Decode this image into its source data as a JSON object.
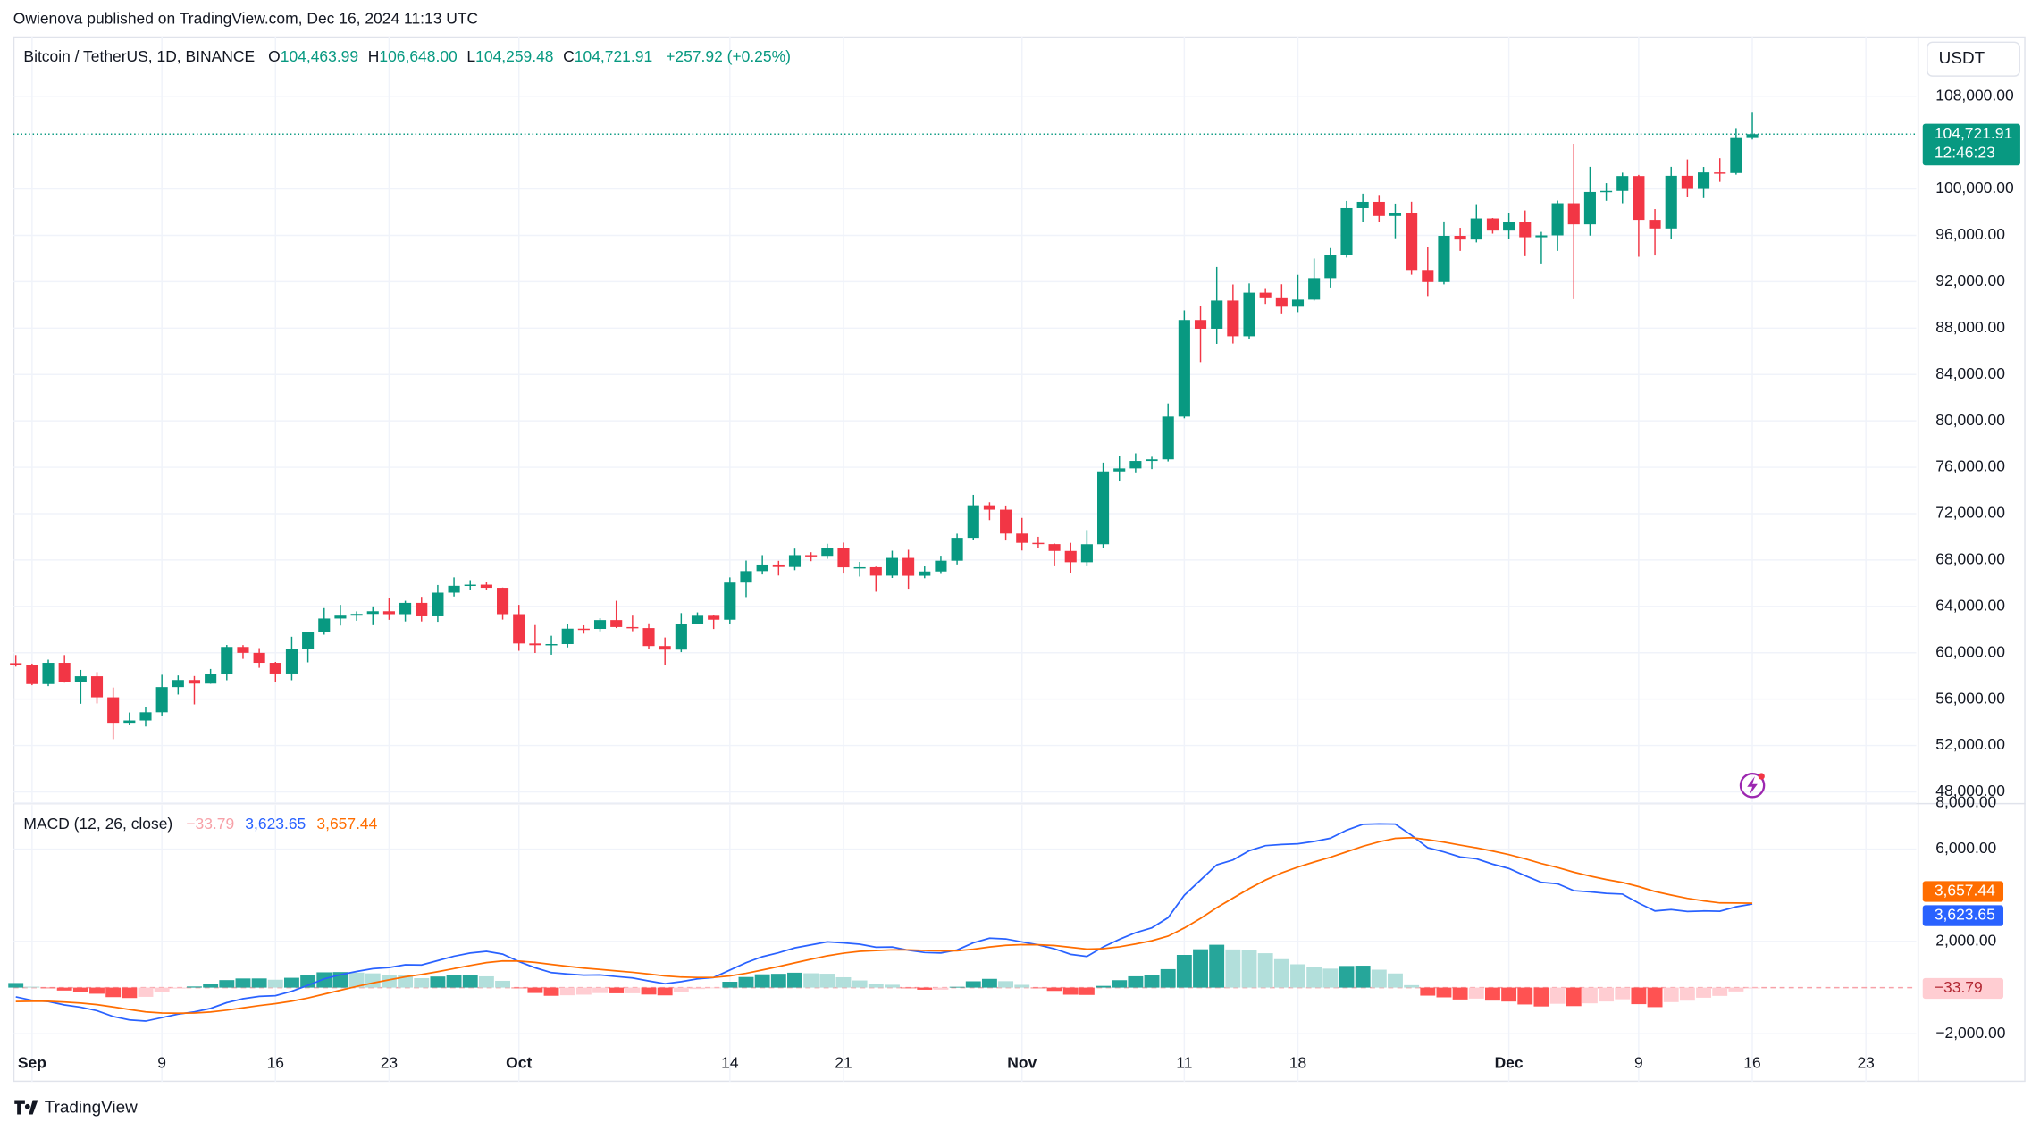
{
  "header": {
    "publisher": "Owienova published on TradingView.com, Dec 16, 2024 11:13 UTC"
  },
  "footer": {
    "brand": "TradingView"
  },
  "chart_data": [
    {
      "type": "candlestick",
      "title": "Bitcoin / TetherUS, 1D, BINANCE",
      "currency": "USDT",
      "ohlc_keys": [
        "O",
        "H",
        "L",
        "C"
      ],
      "ohlc_labels": [
        "104,463.99",
        "106,648.00",
        "104,259.48",
        "104,721.91"
      ],
      "change_label": "+257.92 (+0.25%)",
      "last_price_label": "104,721.91",
      "countdown": "12:46:23",
      "up_color": "#089981",
      "down_color": "#f23645",
      "grid": true,
      "candles": [
        [
          59100,
          59800,
          58800,
          58970
        ],
        [
          58970,
          59060,
          57200,
          57300
        ],
        [
          57300,
          59400,
          57120,
          59130
        ],
        [
          59130,
          59800,
          57420,
          57490
        ],
        [
          57490,
          58520,
          55600,
          57970
        ],
        [
          57970,
          58330,
          55630,
          56160
        ],
        [
          56160,
          57000,
          52550,
          53960
        ],
        [
          53960,
          54850,
          53740,
          54160
        ],
        [
          54160,
          55300,
          53640,
          54870
        ],
        [
          54870,
          58100,
          54590,
          57040
        ],
        [
          57040,
          58040,
          56400,
          57650
        ],
        [
          57650,
          57990,
          55550,
          57340
        ],
        [
          57340,
          58600,
          57320,
          58130
        ],
        [
          58130,
          60670,
          57630,
          60500
        ],
        [
          60500,
          60660,
          59470,
          59990
        ],
        [
          59990,
          60400,
          58700,
          59130
        ],
        [
          59130,
          59210,
          57500,
          58210
        ],
        [
          58210,
          61380,
          57630,
          60310
        ],
        [
          60310,
          61790,
          59170,
          61760
        ],
        [
          61760,
          63850,
          61560,
          62950
        ],
        [
          62950,
          64130,
          62350,
          63200
        ],
        [
          63200,
          63570,
          62760,
          63350
        ],
        [
          63350,
          64000,
          62380,
          63580
        ],
        [
          63580,
          64750,
          62840,
          63330
        ],
        [
          63330,
          64480,
          62700,
          64300
        ],
        [
          64300,
          64820,
          62700,
          63140
        ],
        [
          63140,
          65840,
          62670,
          65180
        ],
        [
          65180,
          66500,
          64850,
          65770
        ],
        [
          65770,
          66260,
          65420,
          65870
        ],
        [
          65870,
          66080,
          65430,
          65600
        ],
        [
          65600,
          65620,
          62860,
          63330
        ],
        [
          63330,
          64130,
          60170,
          60800
        ],
        [
          60800,
          62390,
          59980,
          60650
        ],
        [
          60650,
          61470,
          59830,
          60750
        ],
        [
          60750,
          62480,
          60460,
          62080
        ],
        [
          62080,
          62370,
          61650,
          62060
        ],
        [
          62060,
          62980,
          61850,
          62820
        ],
        [
          62820,
          64480,
          62130,
          62220
        ],
        [
          62220,
          63200,
          61860,
          62130
        ],
        [
          62130,
          62540,
          60300,
          60580
        ],
        [
          60580,
          61320,
          58900,
          60270
        ],
        [
          60270,
          63420,
          60050,
          62450
        ],
        [
          62450,
          63480,
          62450,
          63190
        ],
        [
          63190,
          63290,
          62050,
          62850
        ],
        [
          62850,
          66500,
          62450,
          66050
        ],
        [
          66050,
          67950,
          64800,
          67040
        ],
        [
          67040,
          68420,
          66750,
          67610
        ],
        [
          67610,
          67930,
          66660,
          67400
        ],
        [
          67400,
          68980,
          67120,
          68420
        ],
        [
          68420,
          68670,
          67900,
          68360
        ],
        [
          68360,
          69400,
          68100,
          69000
        ],
        [
          69000,
          69500,
          66830,
          67370
        ],
        [
          67370,
          67840,
          66570,
          67380
        ],
        [
          67380,
          67430,
          65260,
          66650
        ],
        [
          66650,
          68800,
          66450,
          68180
        ],
        [
          68180,
          68880,
          65520,
          66640
        ],
        [
          66640,
          67450,
          66430,
          67010
        ],
        [
          67010,
          68370,
          66800,
          67940
        ],
        [
          67940,
          70270,
          67620,
          69910
        ],
        [
          69910,
          73620,
          69760,
          72720
        ],
        [
          72720,
          72980,
          71440,
          72340
        ],
        [
          72340,
          72700,
          69680,
          70280
        ],
        [
          70280,
          71630,
          68820,
          69480
        ],
        [
          69480,
          70000,
          69000,
          69370
        ],
        [
          69370,
          69420,
          67460,
          68780
        ],
        [
          68780,
          69480,
          66840,
          67810
        ],
        [
          67810,
          70580,
          67460,
          69360
        ],
        [
          69360,
          76400,
          69050,
          75640
        ],
        [
          75640,
          76950,
          74770,
          75900
        ],
        [
          75900,
          77200,
          75560,
          76540
        ],
        [
          76540,
          76900,
          75840,
          76680
        ],
        [
          76680,
          81500,
          76500,
          80370
        ],
        [
          80370,
          89530,
          80220,
          88700
        ],
        [
          88700,
          89950,
          85070,
          87950
        ],
        [
          87950,
          93270,
          86640,
          90380
        ],
        [
          90380,
          91760,
          86670,
          87300
        ],
        [
          87300,
          91850,
          87100,
          91060
        ],
        [
          91060,
          91450,
          90090,
          90580
        ],
        [
          90580,
          91780,
          89270,
          89850
        ],
        [
          89850,
          92590,
          89380,
          90460
        ],
        [
          90460,
          94000,
          90380,
          92310
        ],
        [
          92310,
          94900,
          91500,
          94290
        ],
        [
          94290,
          98970,
          94080,
          98350
        ],
        [
          98350,
          99590,
          97170,
          98890
        ],
        [
          98890,
          99480,
          97130,
          97670
        ],
        [
          97670,
          98740,
          95750,
          97900
        ],
        [
          97900,
          98900,
          92600,
          93010
        ],
        [
          93010,
          94970,
          90770,
          91970
        ],
        [
          91970,
          97200,
          91770,
          95960
        ],
        [
          95960,
          96650,
          94660,
          95640
        ],
        [
          95640,
          98690,
          95390,
          97460
        ],
        [
          97460,
          97500,
          96150,
          96410
        ],
        [
          96410,
          97900,
          95730,
          97190
        ],
        [
          97190,
          98150,
          94200,
          95840
        ],
        [
          95840,
          96300,
          93580,
          96000
        ],
        [
          96000,
          99000,
          94660,
          98770
        ],
        [
          98770,
          103900,
          90500,
          96950
        ],
        [
          96950,
          101900,
          95980,
          99740
        ],
        [
          99740,
          100500,
          98980,
          99830
        ],
        [
          99830,
          101400,
          98770,
          101110
        ],
        [
          101110,
          101210,
          94150,
          97340
        ],
        [
          97340,
          98270,
          94260,
          96590
        ],
        [
          96590,
          101900,
          95690,
          101130
        ],
        [
          101130,
          102540,
          99310,
          100000
        ],
        [
          100000,
          101890,
          99210,
          101420
        ],
        [
          101420,
          102650,
          100610,
          101370
        ],
        [
          101370,
          105250,
          101230,
          104460
        ],
        [
          104463.99,
          106648,
          104259.48,
          104721.91
        ]
      ],
      "xlim": [
        -0.16,
        117.1
      ],
      "xticks": [
        {
          "value": 1,
          "label": "Sep"
        },
        9,
        16,
        23,
        {
          "value": 31,
          "label": "Oct"
        },
        {
          "value": 44,
          "label": "14"
        },
        {
          "value": 51,
          "label": "21"
        },
        {
          "value": 62,
          "label": "Nov"
        },
        {
          "value": 72,
          "label": "11"
        },
        {
          "value": 79,
          "label": "18"
        },
        {
          "value": 92,
          "label": "Dec"
        },
        {
          "value": 100,
          "label": "9"
        },
        {
          "value": 107,
          "label": "16"
        },
        {
          "value": 114,
          "label": "23"
        }
      ],
      "ylim": [
        47100,
        113160
      ],
      "yticks": [
        {
          "value": 48000,
          "label": "48,000.00"
        },
        {
          "value": 52000,
          "label": "52,000.00"
        },
        {
          "value": 56000,
          "label": "56,000.00"
        },
        {
          "value": 60000,
          "label": "60,000.00"
        },
        {
          "value": 64000,
          "label": "64,000.00"
        },
        {
          "value": 68000,
          "label": "68,000.00"
        },
        {
          "value": 72000,
          "label": "72,000.00"
        },
        {
          "value": 76000,
          "label": "76,000.00"
        },
        {
          "value": 80000,
          "label": "80,000.00"
        },
        {
          "value": 84000,
          "label": "84,000.00"
        },
        {
          "value": 88000,
          "label": "88,000.00"
        },
        {
          "value": 92000,
          "label": "92,000.00"
        },
        {
          "value": 96000,
          "label": "96,000.00"
        },
        {
          "value": 100000,
          "label": "100,000.00"
        },
        {
          "value": 108000,
          "label": "108,000.00"
        }
      ]
    },
    {
      "type": "macd",
      "title": "MACD (12, 26, close)",
      "histogram_colors": {
        "up_strong": "#26a69a",
        "up_weak": "#b2dfdb",
        "down_strong": "#ff5252",
        "down_weak": "#ffcdd2"
      },
      "series": [
        {
          "color": "#f7a1a8",
          "last_label": "−33.79",
          "values": [
            200,
            40,
            -8,
            -126,
            -181,
            -265,
            -412,
            -450,
            -400,
            -200,
            -40,
            48,
            158,
            326,
            397,
            398,
            342,
            426,
            549,
            663,
            674,
            651,
            617,
            534,
            523,
            410,
            480,
            536,
            541,
            489,
            295,
            -20,
            -232,
            -354,
            -331,
            -305,
            -236,
            -245,
            -244,
            -299,
            -335,
            -196,
            -61,
            -1,
            255,
            460,
            576,
            597,
            646,
            621,
            601,
            449,
            311,
            145,
            124,
            -13,
            -90,
            -88,
            34,
            275,
            380,
            280,
            120,
            -8,
            -142,
            -306,
            -317,
            74,
            323,
            490,
            560,
            800,
            1416,
            1661,
            1857,
            1654,
            1643,
            1490,
            1232,
            1010,
            888,
            822,
            938,
            950,
            776,
            613,
            106,
            -347,
            -422,
            -514,
            -475,
            -564,
            -603,
            -730,
            -816,
            -701,
            -801,
            -681,
            -601,
            -505,
            -716,
            -845,
            -628,
            -566,
            -437,
            -358,
            -166,
            -33.79
          ]
        },
        {
          "color": "#2962ff",
          "last_label": "3,623.65",
          "values": [
            -400,
            -550,
            -600,
            -750,
            -850,
            -1000,
            -1250,
            -1400,
            -1450,
            -1300,
            -1150,
            -1050,
            -900,
            -650,
            -480,
            -380,
            -350,
            -160,
            100,
            380,
            560,
            700,
            820,
            870,
            990,
            980,
            1170,
            1360,
            1500,
            1570,
            1450,
            1130,
            860,
            650,
            590,
            540,
            550,
            480,
            420,
            290,
            170,
            260,
            380,
            440,
            760,
            1080,
            1340,
            1510,
            1720,
            1850,
            1980,
            1940,
            1880,
            1750,
            1760,
            1620,
            1520,
            1500,
            1630,
            1940,
            2140,
            2110,
            1980,
            1850,
            1680,
            1440,
            1350,
            1760,
            2090,
            2380,
            2590,
            3030,
            4000,
            4660,
            5320,
            5530,
            5930,
            6150,
            6200,
            6230,
            6330,
            6470,
            6820,
            7070,
            7090,
            7080,
            6600,
            6060,
            5880,
            5660,
            5580,
            5350,
            5160,
            4850,
            4560,
            4500,
            4200,
            4150,
            4080,
            4050,
            3660,
            3320,
            3380,
            3300,
            3320,
            3310,
            3500,
            3623.65
          ]
        },
        {
          "color": "#ff6d00",
          "last_label": "3,657.44",
          "values": [
            -600,
            -590,
            -592,
            -624,
            -669,
            -735,
            -838,
            -950,
            -1050,
            -1100,
            -1110,
            -1098,
            -1058,
            -976,
            -877,
            -778,
            -692,
            -586,
            -449,
            -283,
            -114,
            49,
            203,
            336,
            467,
            570,
            690,
            824,
            959,
            1081,
            1155,
            1150,
            1092,
            1004,
            921,
            845,
            786,
            725,
            664,
            589,
            505,
            456,
            441,
            441,
            505,
            620,
            764,
            913,
            1074,
            1229,
            1379,
            1491,
            1569,
            1605,
            1636,
            1633,
            1610,
            1588,
            1596,
            1665,
            1760,
            1830,
            1860,
            1858,
            1822,
            1746,
            1667,
            1686,
            1767,
            1890,
            2030,
            2230,
            2584,
            2999,
            3463,
            3876,
            4287,
            4660,
            4968,
            5220,
            5442,
            5648,
            5882,
            6120,
            6314,
            6467,
            6494,
            6407,
            6302,
            6174,
            6055,
            5914,
            5763,
            5580,
            5376,
            5201,
            5001,
            4831,
            4681,
            4555,
            4376,
            4165,
            4008,
            3866,
            3757,
            3668,
            3666,
            3657.44
          ]
        }
      ],
      "ylim": [
        -4085,
        7915
      ],
      "yticks": [
        {
          "value": -2000,
          "label": "−2,000.00"
        },
        {
          "value": 2000,
          "label": "2,000.00"
        },
        {
          "value": 6000,
          "label": "6,000.00"
        },
        {
          "value": 8000,
          "label": "8,000.00"
        }
      ]
    }
  ]
}
